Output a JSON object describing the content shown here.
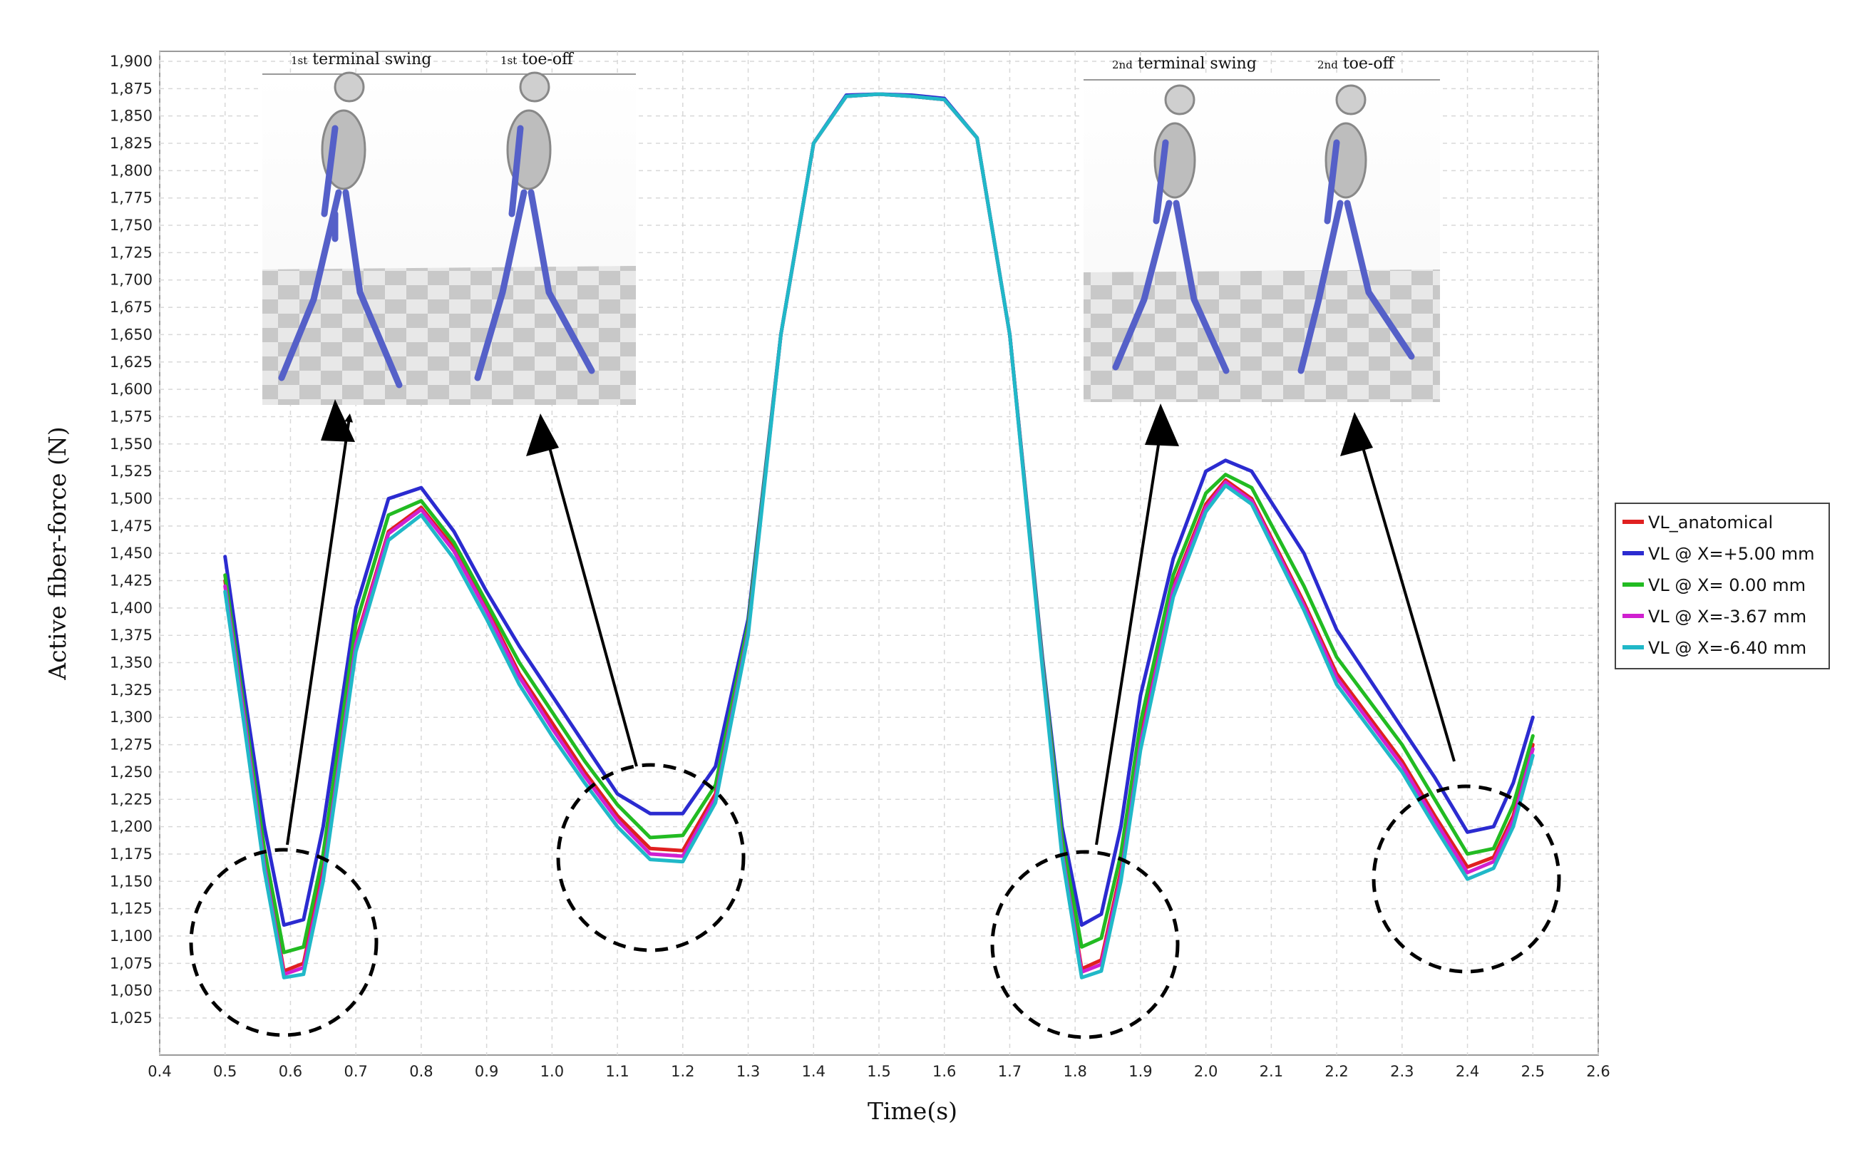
{
  "chart_data": {
    "type": "line",
    "title": "",
    "xlabel": "Time(s)",
    "ylabel": "Active fiber-force (N)",
    "xlim": [
      0.4,
      2.6
    ],
    "ylim": [
      1025,
      1900
    ],
    "x_ticks": [
      "0.4",
      "0.5",
      "0.6",
      "0.7",
      "0.8",
      "0.9",
      "1.0",
      "1.1",
      "1.2",
      "1.3",
      "1.4",
      "1.5",
      "1.6",
      "1.7",
      "1.8",
      "1.9",
      "2.0",
      "2.1",
      "2.2",
      "2.3",
      "2.4",
      "2.5",
      "2.6"
    ],
    "y_ticks": [
      "1,025",
      "1,050",
      "1,075",
      "1,100",
      "1,125",
      "1,150",
      "1,175",
      "1,200",
      "1,225",
      "1,250",
      "1,275",
      "1,300",
      "1,325",
      "1,350",
      "1,375",
      "1,400",
      "1,425",
      "1,450",
      "1,475",
      "1,500",
      "1,525",
      "1,550",
      "1,575",
      "1,600",
      "1,625",
      "1,650",
      "1,675",
      "1,700",
      "1,725",
      "1,750",
      "1,775",
      "1,800",
      "1,825",
      "1,850",
      "1,875",
      "1,900"
    ],
    "grid": true,
    "legend_position": "right",
    "x": [
      0.5,
      0.53,
      0.56,
      0.59,
      0.62,
      0.65,
      0.7,
      0.75,
      0.8,
      0.85,
      0.9,
      0.95,
      1.0,
      1.05,
      1.1,
      1.15,
      1.2,
      1.25,
      1.3,
      1.35,
      1.4,
      1.45,
      1.5,
      1.55,
      1.6,
      1.65,
      1.7,
      1.75,
      1.78,
      1.81,
      1.84,
      1.87,
      1.9,
      1.95,
      2.0,
      2.03,
      2.07,
      2.15,
      2.2,
      2.3,
      2.35,
      2.4,
      2.44,
      2.47,
      2.5
    ],
    "series": [
      {
        "name": "VL_anatomical",
        "color": "#e02020",
        "values": [
          1425,
          1300,
          1170,
          1068,
          1075,
          1160,
          1370,
          1470,
          1492,
          1455,
          1400,
          1340,
          1295,
          1250,
          1210,
          1180,
          1178,
          1230,
          1380,
          1650,
          1825,
          1868,
          1870,
          1868,
          1865,
          1830,
          1650,
          1350,
          1180,
          1070,
          1078,
          1160,
          1280,
          1420,
          1495,
          1517,
          1500,
          1405,
          1340,
          1260,
          1210,
          1163,
          1172,
          1210,
          1275
        ]
      },
      {
        "name": "VL @ X=+5.00 mm",
        "color": "#2b2bd0",
        "values": [
          1447,
          1320,
          1200,
          1110,
          1115,
          1200,
          1400,
          1500,
          1510,
          1470,
          1415,
          1365,
          1320,
          1275,
          1230,
          1212,
          1212,
          1255,
          1390,
          1650,
          1825,
          1869,
          1870,
          1869,
          1866,
          1830,
          1650,
          1355,
          1200,
          1110,
          1120,
          1200,
          1320,
          1445,
          1525,
          1535,
          1525,
          1450,
          1380,
          1290,
          1245,
          1195,
          1200,
          1240,
          1300
        ]
      },
      {
        "name": "VL @ X= 0.00 mm",
        "color": "#22bb22",
        "values": [
          1430,
          1305,
          1180,
          1085,
          1090,
          1175,
          1385,
          1485,
          1498,
          1460,
          1405,
          1350,
          1305,
          1260,
          1220,
          1190,
          1192,
          1238,
          1385,
          1650,
          1825,
          1868,
          1870,
          1868,
          1865,
          1830,
          1650,
          1352,
          1190,
          1090,
          1098,
          1175,
          1295,
          1430,
          1505,
          1522,
          1510,
          1420,
          1355,
          1275,
          1225,
          1175,
          1180,
          1220,
          1283
        ]
      },
      {
        "name": "VL @ X=-3.67 mm",
        "color": "#d020d0",
        "values": [
          1420,
          1297,
          1165,
          1065,
          1071,
          1155,
          1367,
          1468,
          1490,
          1452,
          1397,
          1337,
          1290,
          1246,
          1206,
          1175,
          1173,
          1226,
          1378,
          1650,
          1825,
          1868,
          1870,
          1868,
          1865,
          1830,
          1650,
          1348,
          1177,
          1067,
          1074,
          1155,
          1276,
          1417,
          1492,
          1515,
          1498,
          1402,
          1336,
          1256,
          1206,
          1158,
          1168,
          1206,
          1271
        ]
      },
      {
        "name": "VL @ X=-6.40 mm",
        "color": "#20b8c8",
        "values": [
          1415,
          1290,
          1160,
          1062,
          1065,
          1150,
          1360,
          1462,
          1485,
          1445,
          1390,
          1330,
          1283,
          1240,
          1200,
          1170,
          1168,
          1222,
          1375,
          1650,
          1825,
          1868,
          1870,
          1868,
          1865,
          1830,
          1650,
          1345,
          1173,
          1062,
          1068,
          1150,
          1270,
          1410,
          1488,
          1512,
          1495,
          1398,
          1330,
          1250,
          1200,
          1152,
          1162,
          1200,
          1265
        ]
      }
    ],
    "annotations": {
      "inset_left": {
        "caption_1": {
          "sup": "1st",
          "text": "terminal swing"
        },
        "caption_2": {
          "sup": "1st",
          "text": "toe-off"
        }
      },
      "inset_right": {
        "caption_1": {
          "sup": "2nd",
          "text": "terminal swing"
        },
        "caption_2": {
          "sup": "2nd",
          "text": "toe-off"
        }
      }
    }
  }
}
